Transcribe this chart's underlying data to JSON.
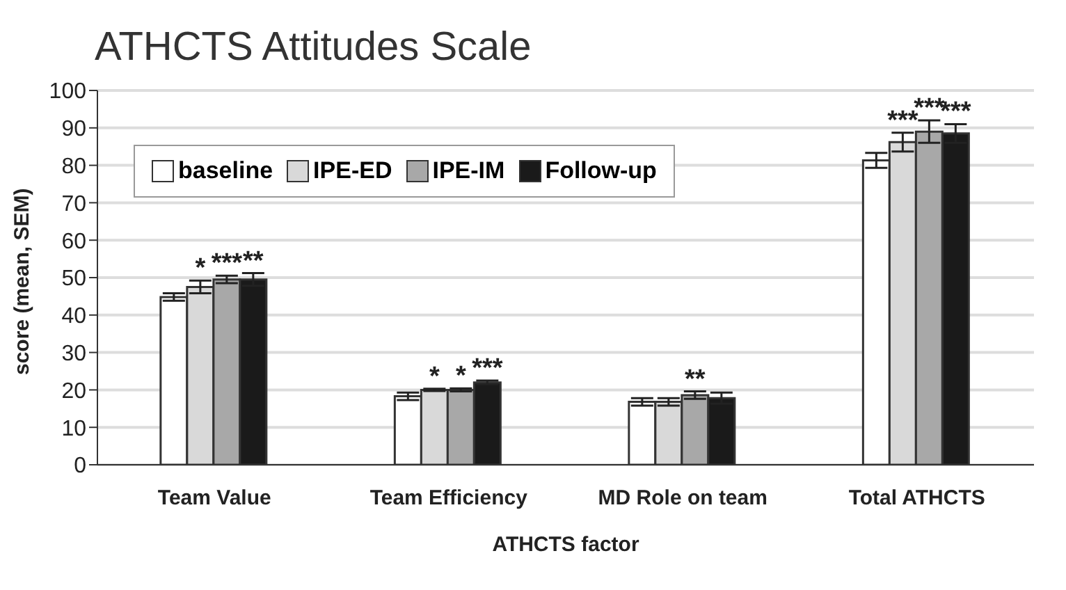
{
  "chart_data": {
    "type": "bar",
    "title": "ATHCTS Attitudes Scale",
    "xlabel": "ATHCTS factor",
    "ylabel": "score (mean, SEM)",
    "categories": [
      "Team Value",
      "Team Efficiency",
      "MD Role on team",
      "Total ATHCTS"
    ],
    "series": [
      {
        "name": "baseline",
        "color": "#ffffff",
        "values": [
          44.8,
          18.3,
          16.8,
          81.3
        ],
        "errors": [
          1,
          1,
          1,
          2
        ]
      },
      {
        "name": "IPE-ED",
        "color": "#d9d9d9",
        "values": [
          47.5,
          20,
          16.8,
          86.2
        ],
        "errors": [
          1.7,
          0.3,
          1,
          2.5
        ]
      },
      {
        "name": "IPE-IM",
        "color": "#a8a8a8",
        "values": [
          49.5,
          20,
          18.6,
          89
        ],
        "errors": [
          1,
          0.4,
          1,
          3
        ]
      },
      {
        "name": "Follow-up",
        "color": "#1a1a1a",
        "values": [
          49.5,
          22,
          17.8,
          88.5
        ],
        "errors": [
          1.7,
          0.5,
          1.5,
          2.5
        ]
      }
    ],
    "ylim": [
      0,
      100
    ],
    "yticks": [
      0,
      10,
      20,
      30,
      40,
      50,
      60,
      70,
      80,
      90,
      100
    ],
    "grid": "y",
    "legend": "top left",
    "annotations": [
      {
        "text": "*",
        "x": "Team Value",
        "y": 47.5
      },
      {
        "text": "***",
        "x": "Team Value",
        "y": 49.5
      },
      {
        "text": "**",
        "x": "Team Value",
        "y": 49.5
      },
      {
        "text": "*",
        "x": "Team Efficiency",
        "y": 20
      },
      {
        "text": "*",
        "x": "Team Efficiency",
        "y": 20
      },
      {
        "text": "***",
        "x": "Team Efficiency",
        "y": 22
      },
      {
        "text": "**",
        "x": "MD Role on team",
        "y": 18.6
      },
      {
        "text": "***",
        "x": "Total ATHCTS",
        "y": 86.2
      },
      {
        "text": "***",
        "x": "Total ATHCTS",
        "y": 89
      },
      {
        "text": "***",
        "x": "Total ATHCTS",
        "y": 88.5
      }
    ]
  }
}
